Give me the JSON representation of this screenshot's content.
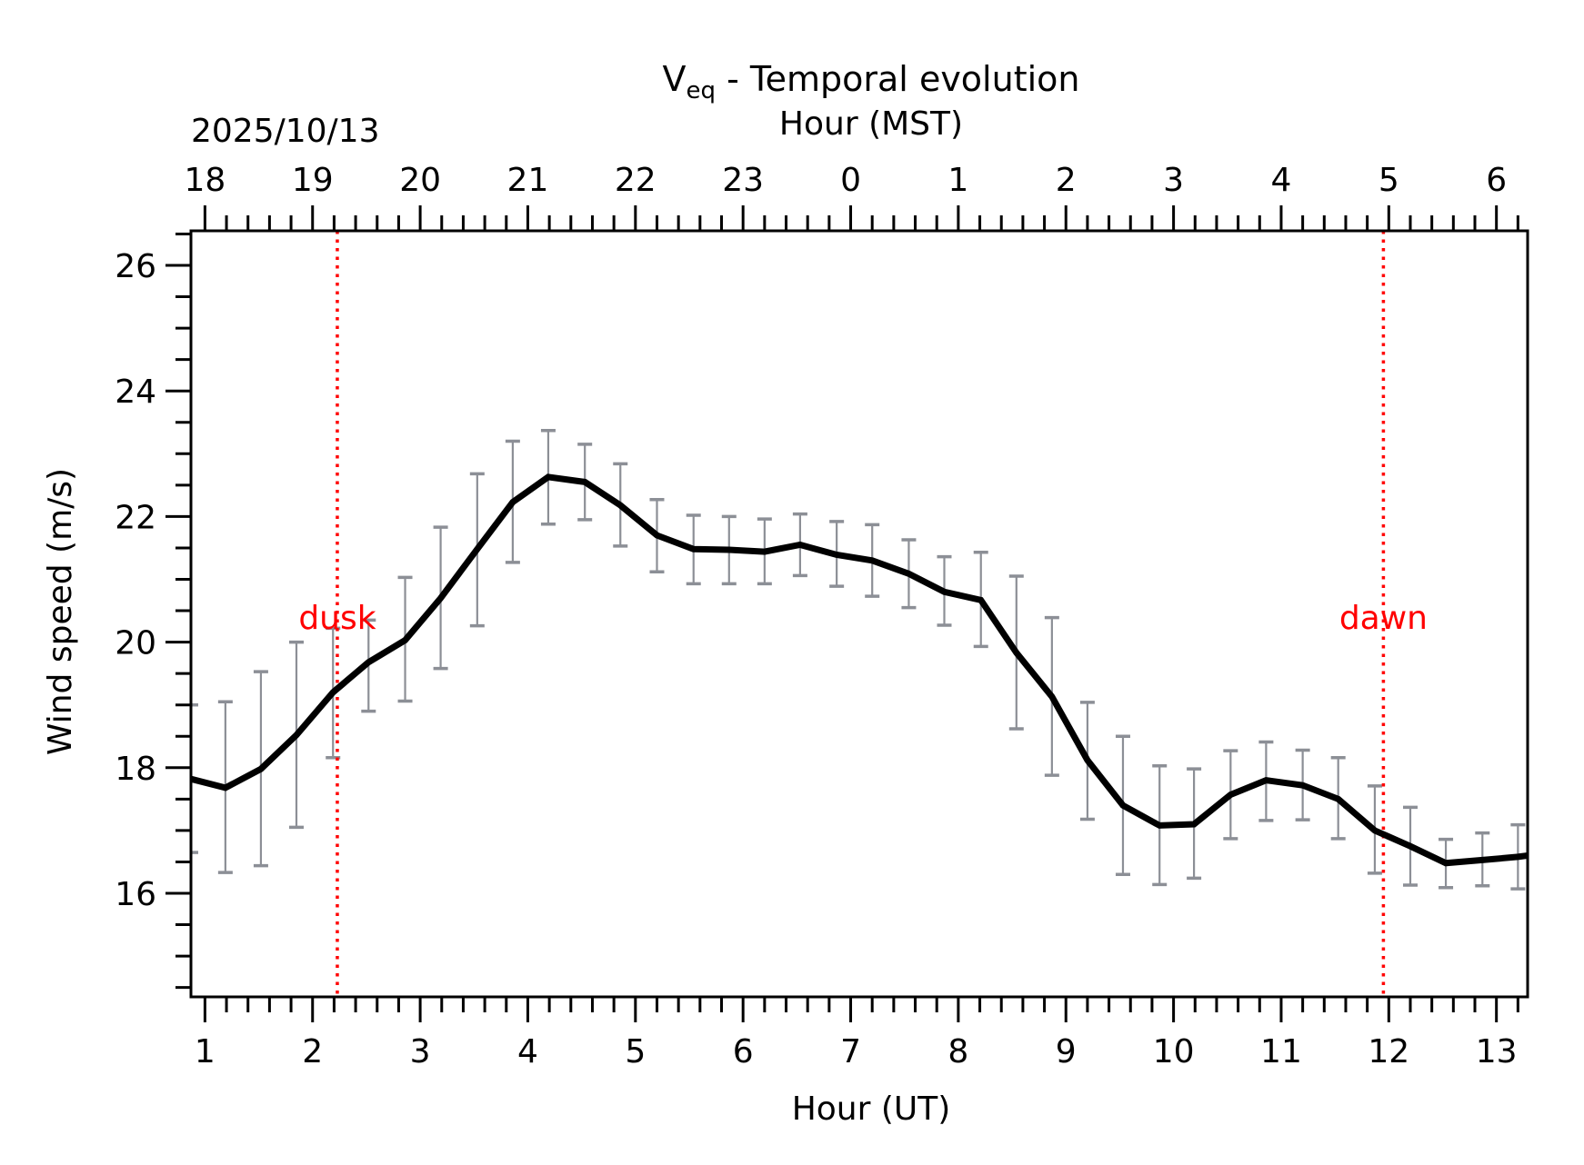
{
  "chart_data": {
    "type": "line",
    "title": "Temporal evolution",
    "title_symbol": "V",
    "title_subscript": "eq",
    "title_separator": " - ",
    "date_label": "2025/10/13",
    "xlabel": "Hour (UT)",
    "x2label": "Hour (MST)",
    "ylabel": "Wind speed (m/s)",
    "xlim": [
      0.87,
      13.29
    ],
    "ylim": [
      14.35,
      26.55
    ],
    "x_ticks": [
      1,
      2,
      3,
      4,
      5,
      6,
      7,
      8,
      9,
      10,
      11,
      12,
      13
    ],
    "x_tick_labels": [
      "1",
      "2",
      "3",
      "4",
      "5",
      "6",
      "7",
      "8",
      "9",
      "10",
      "11",
      "12",
      "13"
    ],
    "x_minor_step": 0.2,
    "x2_ticks": [
      1,
      2,
      3,
      4,
      5,
      6,
      7,
      8,
      9,
      10,
      11,
      12,
      13
    ],
    "x2_tick_labels": [
      "18",
      "19",
      "20",
      "21",
      "22",
      "23",
      "0",
      "1",
      "2",
      "3",
      "4",
      "5",
      "6"
    ],
    "y_ticks": [
      16,
      18,
      20,
      22,
      24,
      26
    ],
    "y_tick_labels": [
      "16",
      "18",
      "20",
      "22",
      "24",
      "26"
    ],
    "y_minor_step": 0.5,
    "grid": false,
    "legend": "none",
    "series": [
      {
        "name": "Veq",
        "color": "#000000",
        "x": [
          0.87,
          1.19,
          1.52,
          1.85,
          2.19,
          2.52,
          2.86,
          3.19,
          3.53,
          3.86,
          4.19,
          4.53,
          4.86,
          5.2,
          5.54,
          5.87,
          6.2,
          6.53,
          6.87,
          7.2,
          7.54,
          7.87,
          8.21,
          8.54,
          8.87,
          9.2,
          9.53,
          9.87,
          10.19,
          10.53,
          10.86,
          11.2,
          11.53,
          11.87,
          12.2,
          12.53,
          12.87,
          13.2,
          13.29
        ],
        "y": [
          17.82,
          17.68,
          17.98,
          18.52,
          19.2,
          19.68,
          20.03,
          20.7,
          21.48,
          22.23,
          22.63,
          22.55,
          22.18,
          21.7,
          21.48,
          21.47,
          21.44,
          21.55,
          21.39,
          21.3,
          21.09,
          20.8,
          20.67,
          19.83,
          19.13,
          18.12,
          17.4,
          17.08,
          17.1,
          17.57,
          17.8,
          17.72,
          17.5,
          17.0,
          16.75,
          16.48,
          16.53,
          16.58,
          16.6
        ],
        "y_low": [
          16.65,
          16.33,
          16.44,
          17.05,
          18.16,
          18.9,
          19.06,
          19.58,
          20.26,
          21.27,
          21.88,
          21.95,
          21.53,
          21.12,
          20.93,
          20.93,
          20.93,
          21.06,
          20.89,
          20.73,
          20.55,
          20.27,
          19.93,
          18.62,
          17.88,
          17.18,
          16.3,
          16.14,
          16.24,
          16.87,
          17.16,
          17.17,
          16.87,
          16.32,
          16.13,
          16.09,
          16.12,
          16.07,
          null
        ],
        "y_high": [
          19.0,
          19.05,
          19.53,
          20.0,
          20.22,
          20.35,
          21.03,
          21.83,
          22.68,
          23.2,
          23.37,
          23.15,
          22.84,
          22.27,
          22.02,
          22.0,
          21.96,
          22.04,
          21.92,
          21.87,
          21.63,
          21.36,
          21.43,
          21.05,
          20.39,
          19.04,
          18.5,
          18.03,
          17.98,
          18.27,
          18.41,
          18.28,
          18.16,
          17.71,
          17.37,
          16.86,
          16.96,
          17.09,
          null
        ],
        "errorbar_color": "#8c8f96"
      }
    ],
    "annotations": [
      {
        "label": "dusk",
        "x": 2.23,
        "color": "#ff0000",
        "text_y": 20.4
      },
      {
        "label": "dawn",
        "x": 11.95,
        "color": "#ff0000",
        "text_y": 20.4
      }
    ]
  }
}
